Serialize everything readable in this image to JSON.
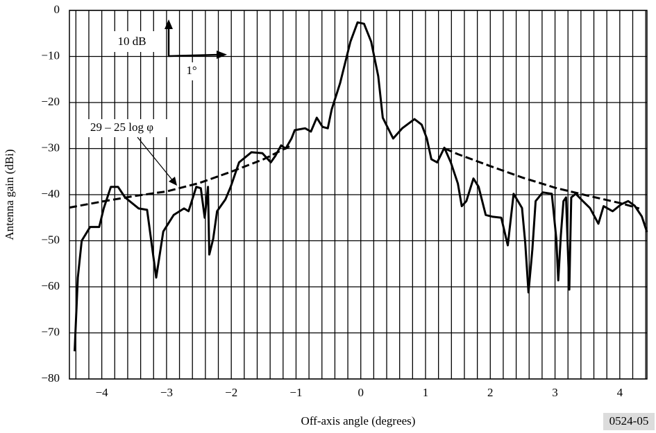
{
  "chart_data": {
    "type": "line",
    "xlabel": "Off-axis angle (degrees)",
    "ylabel": "Antenna gain (dBi)",
    "figure_code": "0524-05",
    "annotations": {
      "scale_y": "10 dB",
      "scale_x": "1°"
    },
    "xlim": [
      -4.5,
      4.42
    ],
    "ylim": [
      -80,
      0
    ],
    "xticks": [
      {
        "value": -4,
        "label": "−4"
      },
      {
        "value": -3,
        "label": "−3"
      },
      {
        "value": -2,
        "label": "−2"
      },
      {
        "value": -1,
        "label": "−1"
      },
      0,
      1,
      2,
      3,
      4
    ],
    "yticks": [
      0,
      {
        "value": -10,
        "label": "−10"
      },
      {
        "value": -20,
        "label": "−20"
      },
      {
        "value": -30,
        "label": "−30"
      },
      {
        "value": -40,
        "label": "−40"
      },
      {
        "value": -50,
        "label": "−50"
      },
      {
        "value": -60,
        "label": "−60"
      },
      {
        "value": -70,
        "label": "−70"
      },
      {
        "value": -80,
        "label": "−80"
      }
    ],
    "xgrid": [
      -4.4,
      -4.2,
      -3.8,
      -3.6,
      -3.4,
      -3.2,
      -2.8,
      -2.6,
      -2.4,
      -2.2,
      -1.8,
      -1.6,
      -1.4,
      -1.2,
      -0.8,
      -0.6,
      -0.4,
      -0.2,
      0.2,
      0.4,
      0.6,
      0.8,
      1.2,
      1.4,
      1.6,
      1.8,
      2.2,
      2.4,
      2.6,
      2.8,
      3.2,
      3.4,
      3.6,
      3.8,
      4.2,
      4.4
    ],
    "grid": true,
    "series": [
      {
        "color": "#000000",
        "dashed": false,
        "x": [
          -4.42,
          -4.37,
          -4.31,
          -4.18,
          -4.04,
          -3.97,
          -3.86,
          -3.75,
          -3.64,
          -3.43,
          -3.3,
          -3.16,
          -3.05,
          -2.89,
          -2.73,
          -2.66,
          -2.54,
          -2.47,
          -2.41,
          -2.36,
          -2.34,
          -2.28,
          -2.22,
          -2.09,
          -2.01,
          -1.88,
          -1.69,
          -1.52,
          -1.39,
          -1.32,
          -1.23,
          -1.16,
          -1.07,
          -1.02,
          -0.86,
          -0.77,
          -0.68,
          -0.59,
          -0.51,
          -0.45,
          -0.32,
          -0.16,
          -0.05,
          0.05,
          0.16,
          0.27,
          0.34,
          0.5,
          0.64,
          0.83,
          0.94,
          1.02,
          1.09,
          1.18,
          1.29,
          1.39,
          1.5,
          1.56,
          1.63,
          1.74,
          1.82,
          1.93,
          2.04,
          2.17,
          2.27,
          2.36,
          2.49,
          2.54,
          2.59,
          2.65,
          2.7,
          2.81,
          2.95,
          3.02,
          3.05,
          3.09,
          3.13,
          3.17,
          3.22,
          3.25,
          3.32,
          3.43,
          3.54,
          3.67,
          3.75,
          3.89,
          4.02,
          4.13,
          4.23,
          4.34,
          4.42
        ],
        "values": [
          -74,
          -58,
          -50,
          -47,
          -47,
          -43,
          -38.3,
          -38.3,
          -40.6,
          -43,
          -43.3,
          -58,
          -48,
          -44.4,
          -43,
          -43.6,
          -38.3,
          -38.6,
          -45,
          -38.3,
          -53,
          -49.6,
          -43.6,
          -41,
          -38.3,
          -33,
          -30.8,
          -31,
          -33,
          -31.6,
          -29.3,
          -30,
          -27.8,
          -26,
          -25.6,
          -26.3,
          -23.3,
          -25.3,
          -25.6,
          -21.5,
          -15.8,
          -6.8,
          -2.6,
          -2.9,
          -6.8,
          -14.3,
          -23.3,
          -27.8,
          -25.6,
          -23.6,
          -24.8,
          -27.8,
          -32.3,
          -33,
          -29.8,
          -33,
          -37.6,
          -42.5,
          -41.4,
          -36.5,
          -38.3,
          -44.4,
          -44.8,
          -45,
          -51,
          -39.8,
          -42.9,
          -50.4,
          -61.2,
          -51.9,
          -41.4,
          -39.5,
          -39.8,
          -49.6,
          -58.6,
          -48.9,
          -41.4,
          -40.6,
          -60.6,
          -40.6,
          -39.8,
          -41.4,
          -42.9,
          -46.3,
          -42.5,
          -43.6,
          -42.1,
          -41.4,
          -42.4,
          -44.7,
          -48.1
        ]
      },
      {
        "name": "29 – 25 log φ",
        "color": "#000000",
        "dashed": true,
        "x": [
          -4.5,
          -4,
          -3.5,
          -3,
          -2.5,
          -2,
          -1.5,
          -1.1,
          0,
          1.3,
          1.5,
          2,
          2.5,
          3,
          3.5,
          4,
          4.3
        ],
        "values": [
          -42.8,
          -41.5,
          -40.3,
          -39.3,
          -37.5,
          -35,
          -32.3,
          -29.5,
          null,
          -30,
          -31.2,
          -33.8,
          -36.3,
          -38.5,
          -40.2,
          -41.8,
          -43
        ]
      }
    ]
  }
}
